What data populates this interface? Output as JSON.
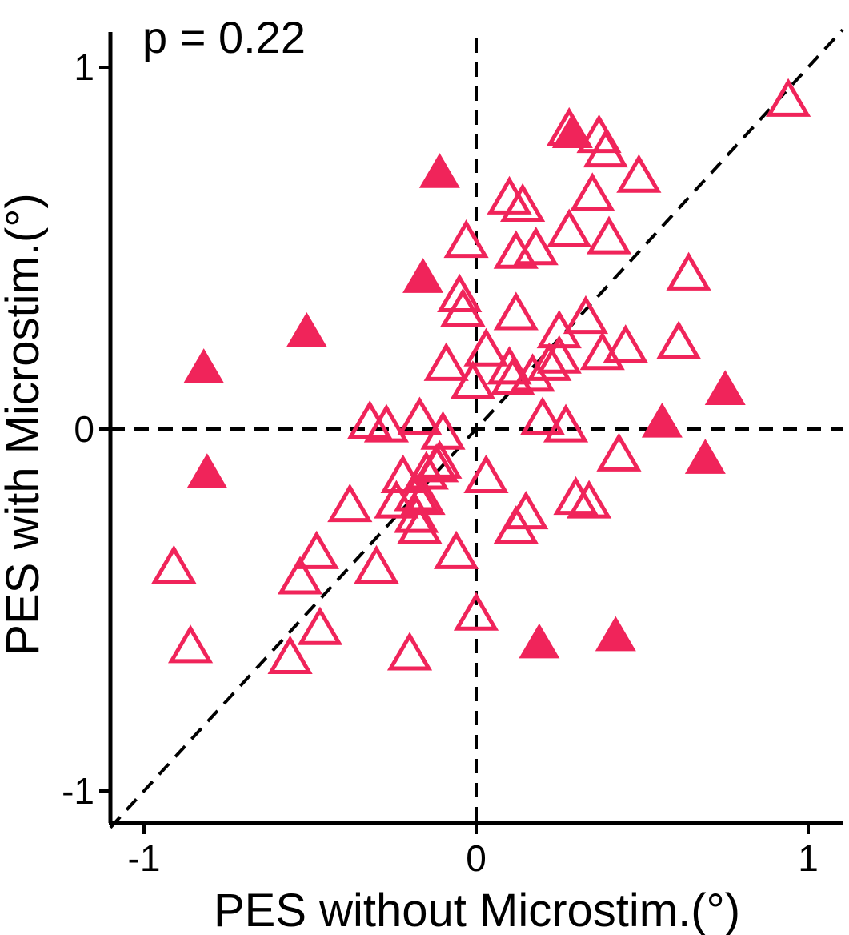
{
  "chart_data": {
    "type": "scatter",
    "title": "",
    "annotation": "p = 0.22",
    "xlabel": "PES without Microstim.(°)",
    "ylabel": "PES with Microstim.(°)",
    "xlim": [
      -1.1,
      1.1
    ],
    "ylim": [
      -1.1,
      1.1
    ],
    "xticks": [
      -1,
      0,
      1
    ],
    "yticks": [
      -1,
      0,
      1
    ],
    "xtick_labels": [
      "-1",
      "0",
      "1"
    ],
    "ytick_labels": [
      "-1",
      "0",
      "1"
    ],
    "reference_lines": [
      "x = 0 (dashed)",
      "y = 0 (dashed)",
      "y = x (dashed)"
    ],
    "grid": false,
    "marker": "triangle",
    "color": "#f0245a",
    "series": [
      {
        "filled": false,
        "points": [
          [
            0.94,
            0.91
          ],
          [
            0.28,
            0.83
          ],
          [
            0.37,
            0.81
          ],
          [
            0.39,
            0.77
          ],
          [
            0.49,
            0.7
          ],
          [
            0.35,
            0.65
          ],
          [
            0.1,
            0.64
          ],
          [
            0.14,
            0.62
          ],
          [
            -0.03,
            0.52
          ],
          [
            0.28,
            0.55
          ],
          [
            0.4,
            0.53
          ],
          [
            0.18,
            0.5
          ],
          [
            0.12,
            0.49
          ],
          [
            0.64,
            0.43
          ],
          [
            -0.05,
            0.37
          ],
          [
            -0.04,
            0.33
          ],
          [
            0.12,
            0.32
          ],
          [
            0.33,
            0.31
          ],
          [
            0.25,
            0.27
          ],
          [
            0.03,
            0.22
          ],
          [
            0.38,
            0.21
          ],
          [
            0.45,
            0.23
          ],
          [
            0.61,
            0.24
          ],
          [
            0.25,
            0.2
          ],
          [
            0.22,
            0.18
          ],
          [
            -0.09,
            0.18
          ],
          [
            0.1,
            0.17
          ],
          [
            0.11,
            0.14
          ],
          [
            0.17,
            0.15
          ],
          [
            -0.01,
            0.13
          ],
          [
            -0.32,
            0.02
          ],
          [
            -0.27,
            0.01
          ],
          [
            -0.17,
            0.03
          ],
          [
            -0.1,
            -0.01
          ],
          [
            0.2,
            0.03
          ],
          [
            0.27,
            0.01
          ],
          [
            0.43,
            -0.07
          ],
          [
            -0.22,
            -0.13
          ],
          [
            -0.15,
            -0.12
          ],
          [
            -0.12,
            -0.1
          ],
          [
            -0.11,
            -0.09
          ],
          [
            0.03,
            -0.13
          ],
          [
            -0.38,
            -0.21
          ],
          [
            -0.24,
            -0.2
          ],
          [
            -0.18,
            -0.18
          ],
          [
            -0.16,
            -0.19
          ],
          [
            -0.18,
            -0.24
          ],
          [
            -0.17,
            -0.27
          ],
          [
            0.3,
            -0.19
          ],
          [
            0.34,
            -0.2
          ],
          [
            0.15,
            -0.23
          ],
          [
            0.12,
            -0.27
          ],
          [
            -0.48,
            -0.34
          ],
          [
            -0.53,
            -0.41
          ],
          [
            -0.91,
            -0.38
          ],
          [
            -0.3,
            -0.38
          ],
          [
            -0.06,
            -0.34
          ],
          [
            -0.47,
            -0.55
          ],
          [
            -0.86,
            -0.6
          ],
          [
            -0.56,
            -0.63
          ],
          [
            -0.2,
            -0.62
          ],
          [
            0.0,
            -0.51
          ]
        ]
      },
      {
        "filled": true,
        "points": [
          [
            0.29,
            0.82
          ],
          [
            -0.11,
            0.71
          ],
          [
            -0.16,
            0.42
          ],
          [
            -0.51,
            0.27
          ],
          [
            -0.82,
            0.17
          ],
          [
            0.75,
            0.11
          ],
          [
            0.56,
            0.02
          ],
          [
            0.69,
            -0.08
          ],
          [
            -0.81,
            -0.12
          ],
          [
            0.19,
            -0.59
          ],
          [
            0.42,
            -0.57
          ]
        ]
      }
    ]
  }
}
